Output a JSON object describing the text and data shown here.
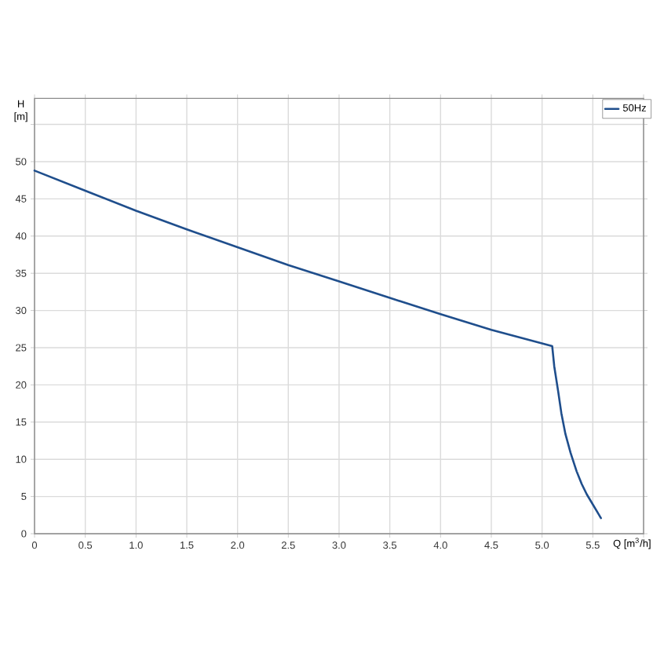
{
  "chart_data": {
    "type": "line",
    "xlabel": "Q [m$^{3}$/h]",
    "ylabel": "H [m]",
    "series": [
      {
        "name": "50Hz",
        "color": "#1f4e8c",
        "x": [
          0,
          0.5,
          1.0,
          1.5,
          2.0,
          2.5,
          3.0,
          3.5,
          4.0,
          4.5,
          5.1,
          5.12,
          5.16,
          5.19,
          5.23,
          5.28,
          5.34,
          5.39,
          5.44,
          5.58
        ],
        "values": [
          48.8,
          46.1,
          43.4,
          40.9,
          38.5,
          36.1,
          33.9,
          31.7,
          29.5,
          27.4,
          25.2,
          22.5,
          19.0,
          16.2,
          13.4,
          10.9,
          8.4,
          6.7,
          5.3,
          2.1
        ]
      }
    ],
    "xlim": [
      0,
      6.0
    ],
    "ylim": [
      0,
      58.5
    ],
    "xticks": [
      0,
      0.5,
      {
        "value": 1.0,
        "label": "1.0"
      },
      1.5,
      {
        "value": 2.0,
        "label": "2.0"
      },
      2.5,
      {
        "value": 3.0,
        "label": "3.0"
      },
      3.5,
      {
        "value": 4.0,
        "label": "4.0"
      },
      4.5,
      {
        "value": 5.0,
        "label": "5.0"
      },
      5.5,
      {
        "value": 6.0,
        "label": null
      }
    ],
    "yticks": [
      0,
      5,
      10,
      15,
      20,
      25,
      30,
      35,
      40,
      45,
      50,
      {
        "value": 55,
        "label": null
      }
    ],
    "grid": true,
    "legend": "top right",
    "marker": "none",
    "line_style": "solid"
  }
}
